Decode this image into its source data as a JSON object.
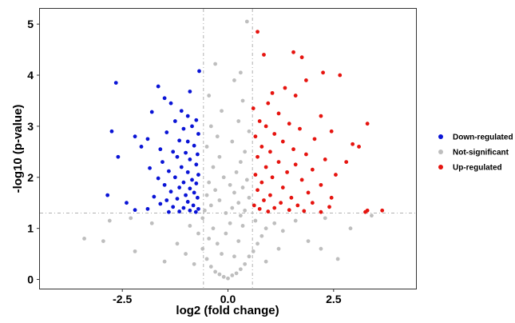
{
  "chart_data": {
    "type": "scatter",
    "xlabel": "log2 (fold change)",
    "ylabel": "-log10 (p-value)",
    "xlim": [
      -4.45,
      4.45
    ],
    "ylim": [
      -0.18,
      5.3
    ],
    "xticks": [
      -2.5,
      0.0,
      2.5
    ],
    "xtick_labels": [
      "-2.5",
      "0.0",
      "2.5"
    ],
    "yticks": [
      0,
      1,
      2,
      3,
      4,
      5
    ],
    "ytick_labels": [
      "0",
      "1",
      "2",
      "3",
      "4",
      "5"
    ],
    "thresholds": {
      "log2fc": [
        -0.58,
        0.58
      ],
      "neg_log10_p": 1.3
    },
    "grid": false,
    "legend_position": "right",
    "series": [
      {
        "name": "Down-regulated",
        "color": "#0a14d6",
        "points": [
          [
            -2.65,
            3.85
          ],
          [
            -1.65,
            3.78
          ],
          [
            -0.68,
            4.08
          ],
          [
            -0.9,
            3.68
          ],
          [
            -1.5,
            3.55
          ],
          [
            -1.35,
            3.45
          ],
          [
            -1.8,
            3.28
          ],
          [
            -1.1,
            3.3
          ],
          [
            -0.95,
            3.2
          ],
          [
            -0.75,
            3.12
          ],
          [
            -1.25,
            3.1
          ],
          [
            -0.85,
            3.0
          ],
          [
            -1.05,
            2.95
          ],
          [
            -2.75,
            2.9
          ],
          [
            -1.45,
            2.88
          ],
          [
            -0.7,
            2.85
          ],
          [
            -2.2,
            2.8
          ],
          [
            -1.9,
            2.75
          ],
          [
            -1.15,
            2.72
          ],
          [
            -0.95,
            2.7
          ],
          [
            -0.8,
            2.62
          ],
          [
            -2.05,
            2.6
          ],
          [
            -1.6,
            2.55
          ],
          [
            -1.3,
            2.5
          ],
          [
            -1.0,
            2.48
          ],
          [
            -0.72,
            2.45
          ],
          [
            -1.2,
            2.4
          ],
          [
            -2.6,
            2.4
          ],
          [
            -0.9,
            2.35
          ],
          [
            -1.55,
            2.3
          ],
          [
            -0.75,
            2.25
          ],
          [
            -1.1,
            2.2
          ],
          [
            -1.85,
            2.18
          ],
          [
            -1.4,
            2.12
          ],
          [
            -0.95,
            2.1
          ],
          [
            -0.7,
            2.05
          ],
          [
            -1.25,
            2.0
          ],
          [
            -1.65,
            1.98
          ],
          [
            -0.85,
            1.95
          ],
          [
            -1.05,
            1.9
          ],
          [
            -0.75,
            1.88
          ],
          [
            -1.5,
            1.85
          ],
          [
            -1.15,
            1.8
          ],
          [
            -0.9,
            1.78
          ],
          [
            -1.35,
            1.72
          ],
          [
            -0.8,
            1.7
          ],
          [
            -1.0,
            1.65
          ],
          [
            -2.85,
            1.65
          ],
          [
            -1.75,
            1.62
          ],
          [
            -0.72,
            1.6
          ],
          [
            -1.2,
            1.58
          ],
          [
            -1.45,
            1.55
          ],
          [
            -0.95,
            1.52
          ],
          [
            -2.4,
            1.5
          ],
          [
            -1.6,
            1.48
          ],
          [
            -0.82,
            1.45
          ],
          [
            -1.3,
            1.42
          ],
          [
            -1.05,
            1.4
          ],
          [
            -0.7,
            1.38
          ],
          [
            -1.9,
            1.38
          ],
          [
            -2.2,
            1.36
          ],
          [
            -0.9,
            1.35
          ],
          [
            -1.15,
            1.33
          ],
          [
            -0.76,
            1.32
          ],
          [
            -1.4,
            1.32
          ]
        ]
      },
      {
        "name": "Not-significant",
        "color": "#bebebe",
        "points": [
          [
            0.45,
            5.05
          ],
          [
            -0.3,
            4.22
          ],
          [
            0.3,
            4.05
          ],
          [
            0.15,
            3.9
          ],
          [
            -0.45,
            3.6
          ],
          [
            0.35,
            3.5
          ],
          [
            -0.15,
            3.3
          ],
          [
            0.25,
            3.1
          ],
          [
            -0.4,
            3.0
          ],
          [
            0.5,
            2.9
          ],
          [
            -0.25,
            2.8
          ],
          [
            0.1,
            2.7
          ],
          [
            -0.5,
            2.6
          ],
          [
            0.4,
            2.5
          ],
          [
            -0.2,
            2.4
          ],
          [
            0.3,
            2.3
          ],
          [
            -0.35,
            2.2
          ],
          [
            0.2,
            2.1
          ],
          [
            -0.1,
            2.0
          ],
          [
            0.45,
            1.95
          ],
          [
            -0.45,
            1.9
          ],
          [
            0.05,
            1.85
          ],
          [
            0.35,
            1.8
          ],
          [
            -0.3,
            1.75
          ],
          [
            0.15,
            1.7
          ],
          [
            -0.5,
            1.65
          ],
          [
            0.5,
            1.6
          ],
          [
            -0.2,
            1.55
          ],
          [
            0.25,
            1.5
          ],
          [
            -0.4,
            1.45
          ],
          [
            0.1,
            1.4
          ],
          [
            -0.55,
            1.35
          ],
          [
            0.4,
            1.35
          ],
          [
            -0.05,
            1.3
          ],
          [
            0.3,
            1.25
          ],
          [
            -3.4,
            0.8
          ],
          [
            -2.95,
            0.75
          ],
          [
            -2.8,
            1.15
          ],
          [
            -2.2,
            0.55
          ],
          [
            -1.5,
            0.35
          ],
          [
            -1.2,
            0.7
          ],
          [
            -1.8,
            1.1
          ],
          [
            -0.9,
            1.05
          ],
          [
            -0.7,
            0.9
          ],
          [
            -0.6,
            0.6
          ],
          [
            -0.5,
            0.4
          ],
          [
            -0.4,
            0.25
          ],
          [
            -0.3,
            0.15
          ],
          [
            -0.2,
            0.1
          ],
          [
            -0.1,
            0.05
          ],
          [
            0.0,
            0.02
          ],
          [
            0.1,
            0.08
          ],
          [
            0.2,
            0.12
          ],
          [
            0.3,
            0.2
          ],
          [
            0.4,
            0.3
          ],
          [
            0.5,
            0.45
          ],
          [
            0.6,
            0.55
          ],
          [
            0.7,
            0.7
          ],
          [
            0.8,
            0.85
          ],
          [
            0.9,
            1.0
          ],
          [
            1.1,
            1.1
          ],
          [
            1.3,
            0.95
          ],
          [
            1.6,
            1.15
          ],
          [
            1.9,
            0.75
          ],
          [
            2.3,
            1.2
          ],
          [
            2.6,
            0.4
          ],
          [
            2.2,
            0.6
          ],
          [
            3.4,
            1.25
          ],
          [
            2.9,
            1.0
          ],
          [
            -2.3,
            1.2
          ],
          [
            -1.0,
            0.5
          ],
          [
            -0.8,
            0.3
          ],
          [
            0.9,
            0.35
          ],
          [
            1.2,
            0.6
          ],
          [
            -0.25,
            0.7
          ],
          [
            0.25,
            0.75
          ],
          [
            -0.15,
            0.5
          ],
          [
            0.15,
            0.45
          ],
          [
            -0.35,
            1.0
          ],
          [
            0.35,
            1.05
          ],
          [
            -0.05,
            0.9
          ],
          [
            0.05,
            1.1
          ],
          [
            -0.6,
            1.2
          ],
          [
            0.65,
            1.15
          ],
          [
            -0.45,
            0.8
          ]
        ]
      },
      {
        "name": "Up-regulated",
        "color": "#e6140f",
        "points": [
          [
            0.7,
            4.85
          ],
          [
            1.55,
            4.45
          ],
          [
            1.75,
            4.35
          ],
          [
            0.85,
            4.4
          ],
          [
            2.25,
            4.05
          ],
          [
            2.65,
            4.0
          ],
          [
            1.85,
            3.9
          ],
          [
            1.35,
            3.75
          ],
          [
            1.05,
            3.65
          ],
          [
            1.6,
            3.6
          ],
          [
            0.95,
            3.45
          ],
          [
            0.6,
            3.35
          ],
          [
            1.2,
            3.25
          ],
          [
            2.2,
            3.2
          ],
          [
            0.75,
            3.1
          ],
          [
            1.45,
            3.05
          ],
          [
            3.3,
            3.05
          ],
          [
            0.9,
            3.0
          ],
          [
            1.7,
            2.95
          ],
          [
            2.45,
            2.9
          ],
          [
            1.1,
            2.85
          ],
          [
            0.65,
            2.8
          ],
          [
            2.05,
            2.75
          ],
          [
            1.3,
            2.7
          ],
          [
            2.95,
            2.65
          ],
          [
            0.8,
            2.6
          ],
          [
            1.55,
            2.55
          ],
          [
            3.1,
            2.6
          ],
          [
            1.0,
            2.5
          ],
          [
            1.85,
            2.45
          ],
          [
            0.7,
            2.4
          ],
          [
            2.3,
            2.35
          ],
          [
            1.2,
            2.3
          ],
          [
            2.8,
            2.3
          ],
          [
            1.6,
            2.25
          ],
          [
            0.9,
            2.2
          ],
          [
            2.0,
            2.15
          ],
          [
            1.4,
            2.1
          ],
          [
            0.65,
            2.05
          ],
          [
            2.55,
            2.05
          ],
          [
            1.05,
            2.0
          ],
          [
            1.75,
            1.95
          ],
          [
            0.8,
            1.9
          ],
          [
            2.2,
            1.85
          ],
          [
            1.3,
            1.8
          ],
          [
            0.7,
            1.75
          ],
          [
            1.9,
            1.7
          ],
          [
            1.0,
            1.65
          ],
          [
            1.5,
            1.6
          ],
          [
            2.45,
            1.6
          ],
          [
            0.85,
            1.55
          ],
          [
            1.25,
            1.5
          ],
          [
            2.0,
            1.5
          ],
          [
            0.62,
            1.45
          ],
          [
            1.65,
            1.45
          ],
          [
            2.4,
            1.42
          ],
          [
            1.1,
            1.4
          ],
          [
            0.75,
            1.38
          ],
          [
            1.45,
            1.36
          ],
          [
            3.3,
            1.35
          ],
          [
            3.65,
            1.35
          ],
          [
            1.8,
            1.34
          ],
          [
            0.95,
            1.33
          ],
          [
            2.2,
            1.32
          ],
          [
            3.25,
            1.32
          ]
        ]
      }
    ]
  }
}
